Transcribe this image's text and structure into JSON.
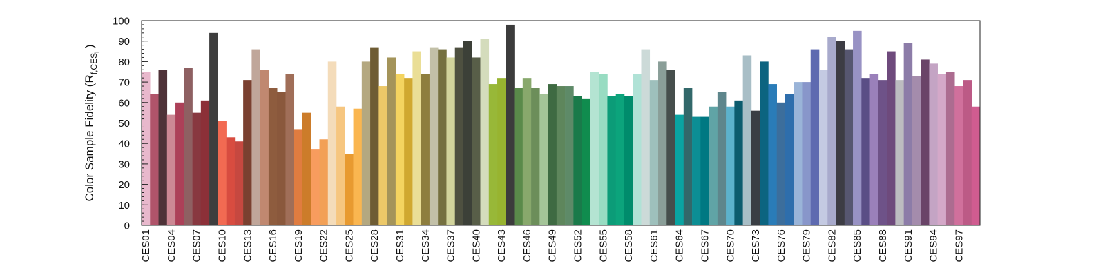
{
  "chart_data": {
    "type": "bar",
    "title": "",
    "xlabel": "",
    "ylabel": "Color Sample Fidelity (R",
    "ylabel_subscript": "f,CES",
    "ylabel_subscript2": "i",
    "ylabel_close": ")",
    "ylim": [
      0,
      100
    ],
    "yticks": [
      0,
      10,
      20,
      30,
      40,
      50,
      60,
      70,
      80,
      90,
      100
    ],
    "y_minor_step": 2,
    "grid": false,
    "categories": [
      "CES01",
      "CES02",
      "CES03",
      "CES04",
      "CES05",
      "CES06",
      "CES07",
      "CES08",
      "CES09",
      "CES10",
      "CES11",
      "CES12",
      "CES13",
      "CES14",
      "CES15",
      "CES16",
      "CES17",
      "CES18",
      "CES19",
      "CES20",
      "CES21",
      "CES22",
      "CES23",
      "CES24",
      "CES25",
      "CES26",
      "CES27",
      "CES28",
      "CES29",
      "CES30",
      "CES31",
      "CES32",
      "CES33",
      "CES34",
      "CES35",
      "CES36",
      "CES37",
      "CES38",
      "CES39",
      "CES40",
      "CES41",
      "CES42",
      "CES43",
      "CES44",
      "CES45",
      "CES46",
      "CES47",
      "CES48",
      "CES49",
      "CES50",
      "CES51",
      "CES52",
      "CES53",
      "CES54",
      "CES55",
      "CES56",
      "CES57",
      "CES58",
      "CES59",
      "CES60",
      "CES61",
      "CES62",
      "CES63",
      "CES64",
      "CES65",
      "CES66",
      "CES67",
      "CES68",
      "CES69",
      "CES70",
      "CES71",
      "CES72",
      "CES73",
      "CES74",
      "CES75",
      "CES76",
      "CES77",
      "CES78",
      "CES79",
      "CES80",
      "CES81",
      "CES82",
      "CES83",
      "CES84",
      "CES85",
      "CES86",
      "CES87",
      "CES88",
      "CES89",
      "CES90",
      "CES91",
      "CES92",
      "CES93",
      "CES94",
      "CES95",
      "CES96",
      "CES97",
      "CES98",
      "CES99"
    ],
    "visible_tick_labels": [
      "CES01",
      "CES04",
      "CES07",
      "CES10",
      "CES13",
      "CES16",
      "CES19",
      "CES22",
      "CES25",
      "CES28",
      "CES31",
      "CES34",
      "CES37",
      "CES40",
      "CES43",
      "CES46",
      "CES49",
      "CES52",
      "CES55",
      "CES58",
      "CES61",
      "CES64",
      "CES67",
      "CES70",
      "CES73",
      "CES76",
      "CES79",
      "CES82",
      "CES85",
      "CES88",
      "CES91",
      "CES94",
      "CES97"
    ],
    "values": [
      75,
      64,
      76,
      54,
      60,
      77,
      55,
      61,
      94,
      51,
      43,
      41,
      71,
      86,
      76,
      67,
      65,
      74,
      47,
      55,
      37,
      42,
      80,
      58,
      35,
      57,
      80,
      87,
      68,
      82,
      74,
      72,
      85,
      74,
      87,
      86,
      82,
      87,
      90,
      82,
      91,
      69,
      72,
      98,
      67,
      72,
      67,
      64,
      69,
      68,
      68,
      63,
      62,
      75,
      74,
      63,
      64,
      63,
      74,
      86,
      71,
      80,
      76,
      54,
      67,
      53,
      53,
      58,
      65,
      58,
      61,
      83,
      56,
      80,
      69,
      60,
      64,
      70,
      70,
      86,
      76,
      92,
      90,
      86,
      95,
      72,
      74,
      71,
      85,
      71,
      89,
      73,
      81,
      79,
      74,
      75,
      68,
      71,
      58
    ],
    "colors": [
      "#e8b8cc",
      "#b0546a",
      "#4e3238",
      "#cc8894",
      "#ac4058",
      "#8e6062",
      "#883840",
      "#8c3038",
      "#3e3e3e",
      "#f26a52",
      "#d84c40",
      "#c64840",
      "#7a4030",
      "#c0a69a",
      "#c08870",
      "#8e5c3e",
      "#8a583c",
      "#a06e58",
      "#e07c40",
      "#cc7c2a",
      "#f89c5e",
      "#f2a056",
      "#f4dcba",
      "#f6c680",
      "#e89a30",
      "#fab650",
      "#b4a880",
      "#6e5c34",
      "#ecc868",
      "#a4945a",
      "#f4d460",
      "#d0a830",
      "#eade96",
      "#8e7e3e",
      "#c2c0a8",
      "#757040",
      "#d2d49c",
      "#4e5040",
      "#3c4038",
      "#585e48",
      "#d4dcbc",
      "#98b838",
      "#98b430",
      "#3c3c3c",
      "#5a8a4a",
      "#88a86c",
      "#6c8e5a",
      "#a4c498",
      "#3e6a42",
      "#5e865c",
      "#5e8a68",
      "#1a7a4a",
      "#108c4e",
      "#b4e4d2",
      "#98dcc2",
      "#0c9c78",
      "#0ca47c",
      "#008c6c",
      "#b0e2d6",
      "#ccdad8",
      "#9ec0bc",
      "#8a9e98",
      "#464e4c",
      "#0aa4a2",
      "#32686a",
      "#0c8e94",
      "#007882",
      "#60a4a6",
      "#5e868c",
      "#5cb2cc",
      "#0c5c6e",
      "#a8bec6",
      "#3a3e44",
      "#0c6480",
      "#2a7cb8",
      "#3c6e9c",
      "#2e6eac",
      "#9ab4d8",
      "#8896ca",
      "#5e6ab0",
      "#c4cae2",
      "#a8aacc",
      "#3c3c44",
      "#565670",
      "#9892c4",
      "#5a4e86",
      "#9a80ba",
      "#6e5288",
      "#6e4a7c",
      "#bcbcc0",
      "#8c7ca8",
      "#a48cac",
      "#6a4468",
      "#c4a4c4",
      "#d4a8c8",
      "#ac6c90",
      "#d0709c",
      "#bc5a86",
      "#d05c90"
    ]
  }
}
